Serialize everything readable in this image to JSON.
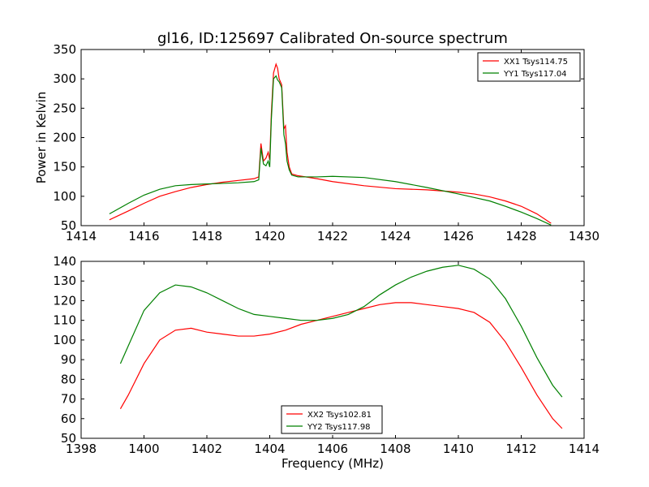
{
  "title": "gl16, ID:125697 Calibrated On-source spectrum",
  "chart_data": [
    {
      "type": "line",
      "ylabel": "Power in Kelvin",
      "xlabel": "",
      "xlim": [
        1414,
        1430
      ],
      "ylim": [
        50,
        350
      ],
      "xticks": [
        1414,
        1416,
        1418,
        1420,
        1422,
        1424,
        1426,
        1428,
        1430
      ],
      "yticks": [
        50,
        100,
        150,
        200,
        250,
        300,
        350
      ],
      "legend": "top-right",
      "series": [
        {
          "name": "XX1 Tsys114.75",
          "color": "#ff0000",
          "x": [
            1414.9,
            1415.5,
            1416,
            1416.5,
            1417,
            1417.5,
            1418,
            1418.5,
            1419,
            1419.5,
            1419.65,
            1419.72,
            1419.8,
            1419.88,
            1419.95,
            1420.0,
            1420.05,
            1420.12,
            1420.2,
            1420.25,
            1420.3,
            1420.38,
            1420.45,
            1420.5,
            1420.55,
            1420.62,
            1420.7,
            1420.9,
            1421.5,
            1422,
            1423,
            1424,
            1425,
            1426,
            1426.5,
            1427,
            1427.5,
            1428,
            1428.5,
            1428.95
          ],
          "values": [
            60,
            75,
            88,
            100,
            108,
            115,
            120,
            124,
            127,
            130,
            133,
            190,
            160,
            165,
            175,
            162,
            240,
            310,
            325,
            318,
            300,
            290,
            215,
            220,
            175,
            150,
            138,
            135,
            130,
            125,
            118,
            113,
            111,
            107,
            104,
            99,
            92,
            83,
            70,
            54
          ]
        },
        {
          "name": "YY1 Tsys117.04",
          "color": "#008000",
          "x": [
            1414.9,
            1415.5,
            1416,
            1416.5,
            1417,
            1417.5,
            1418,
            1418.5,
            1419,
            1419.5,
            1419.65,
            1419.72,
            1419.8,
            1419.88,
            1419.95,
            1420.0,
            1420.05,
            1420.12,
            1420.2,
            1420.25,
            1420.3,
            1420.38,
            1420.45,
            1420.5,
            1420.55,
            1420.62,
            1420.7,
            1420.9,
            1421.5,
            1422,
            1423,
            1424,
            1425,
            1426,
            1426.5,
            1427,
            1427.5,
            1428,
            1428.5,
            1428.95
          ],
          "values": [
            70,
            88,
            102,
            112,
            118,
            120,
            121,
            122,
            123,
            125,
            128,
            182,
            155,
            152,
            160,
            150,
            230,
            300,
            305,
            298,
            295,
            285,
            205,
            190,
            160,
            145,
            136,
            133,
            133,
            134,
            132,
            125,
            115,
            104,
            98,
            92,
            83,
            73,
            62,
            51
          ]
        }
      ]
    },
    {
      "type": "line",
      "xlabel": "Frequency (MHz)",
      "ylabel": "",
      "xlim": [
        1398,
        1414
      ],
      "ylim": [
        50,
        140
      ],
      "xticks": [
        1398,
        1400,
        1402,
        1404,
        1406,
        1408,
        1410,
        1412,
        1414
      ],
      "yticks": [
        50,
        60,
        70,
        80,
        90,
        100,
        110,
        120,
        130,
        140
      ],
      "legend": "bottom-center",
      "series": [
        {
          "name": "XX2 Tsys102.81",
          "color": "#ff0000",
          "x": [
            1399.25,
            1399.5,
            1400,
            1400.5,
            1401,
            1401.5,
            1402,
            1402.5,
            1403,
            1403.5,
            1404,
            1404.5,
            1405,
            1405.5,
            1406,
            1406.5,
            1407,
            1407.5,
            1408,
            1408.5,
            1409,
            1409.5,
            1410,
            1410.5,
            1411,
            1411.5,
            1412,
            1412.5,
            1413,
            1413.3
          ],
          "values": [
            65,
            72,
            88,
            100,
            105,
            106,
            104,
            103,
            102,
            102,
            103,
            105,
            108,
            110,
            112,
            114,
            116,
            118,
            119,
            119,
            118,
            117,
            116,
            114,
            109,
            99,
            86,
            72,
            60,
            55
          ]
        },
        {
          "name": "YY2 Tsys117.98",
          "color": "#008000",
          "x": [
            1399.25,
            1399.5,
            1400,
            1400.5,
            1401,
            1401.5,
            1402,
            1402.5,
            1403,
            1403.5,
            1404,
            1404.5,
            1405,
            1405.5,
            1406,
            1406.5,
            1407,
            1407.5,
            1408,
            1408.5,
            1409,
            1409.5,
            1410,
            1410.5,
            1411,
            1411.5,
            1412,
            1412.5,
            1413,
            1413.3
          ],
          "values": [
            88,
            97,
            115,
            124,
            128,
            127,
            124,
            120,
            116,
            113,
            112,
            111,
            110,
            110,
            111,
            113,
            117,
            123,
            128,
            132,
            135,
            137,
            138,
            136,
            131,
            121,
            107,
            91,
            77,
            71
          ]
        }
      ]
    }
  ]
}
